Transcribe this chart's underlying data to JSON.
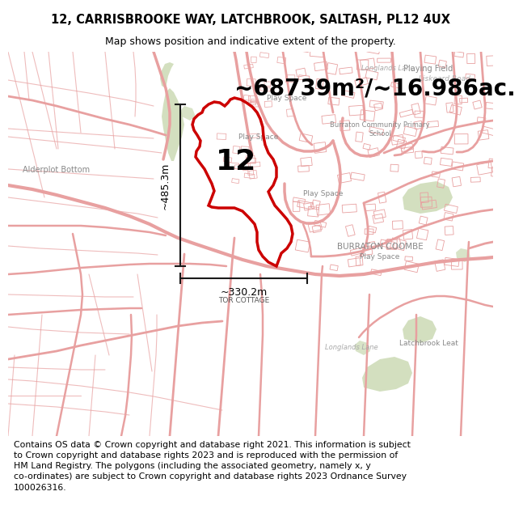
{
  "title_line1": "12, CARRISBROOKE WAY, LATCHBROOK, SALTASH, PL12 4UX",
  "title_line2": "Map shows position and indicative extent of the property.",
  "area_text": "~68739m²/~16.986ac.",
  "label_12": "12",
  "dim_vertical": "~485.3m",
  "dim_horizontal": "~330.2m",
  "tor_cottage": "TOR COTTAGE",
  "footer": "Contains OS data © Crown copyright and database right 2021. This information is subject\nto Crown copyright and database rights 2023 and is reproduced with the permission of\nHM Land Registry. The polygons (including the associated geometry, namely x, y\nco-ordinates) are subject to Crown copyright and database rights 2023 Ordnance Survey\n100026316.",
  "map_bg": "#f8f4f0",
  "road_color": "#e8a0a0",
  "road_color2": "#d08080",
  "green_color": "#c8d8b0",
  "green_color2": "#b8c8a0",
  "plot_outline_color": "#cc0000",
  "dim_line_color": "#1a1a1a",
  "title_bg": "#ffffff",
  "footer_bg": "#ffffff",
  "area_fontsize": 20,
  "label_fontsize": 26,
  "dim_fontsize": 9,
  "footer_fontsize": 7.8,
  "title_fontsize": 10.5,
  "subtitle_fontsize": 9
}
